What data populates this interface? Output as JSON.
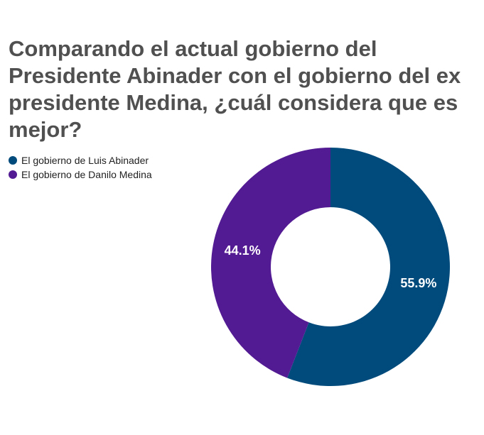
{
  "chart_data": {
    "type": "pie",
    "donut": true,
    "title": "Comparando el actual gobierno del Presidente Abinader con el gobierno del ex presidente Medina, ¿cuál considera que es mejor?",
    "slices": [
      {
        "label": "El gobierno de Luis Abinader",
        "value": 55.9,
        "display": "55.9%",
        "color": "#004b7c"
      },
      {
        "label": "El gobierno de Danilo Medina",
        "value": 44.1,
        "display": "44.1%",
        "color": "#531b93"
      }
    ],
    "legend_position": "top-left"
  }
}
